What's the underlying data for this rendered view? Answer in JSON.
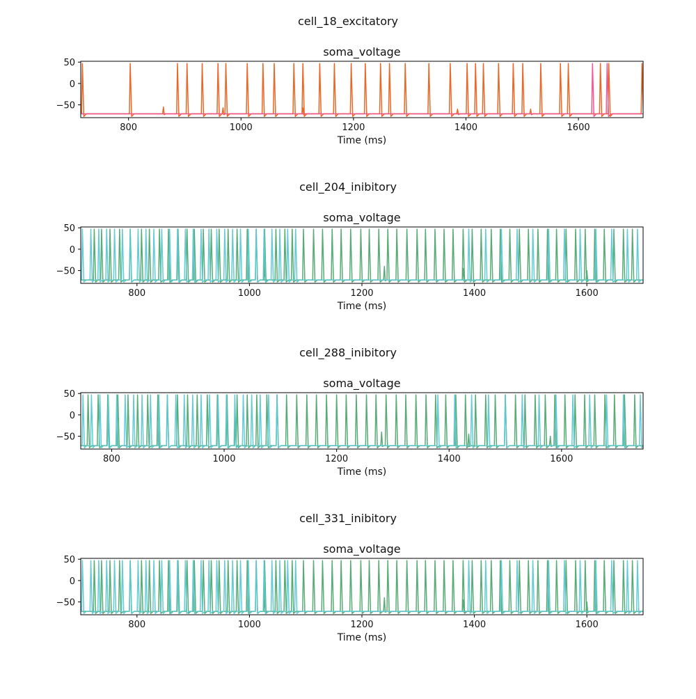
{
  "chart_data": [
    {
      "type": "line",
      "suptitle": "cell_18_excitatory",
      "title": "soma_voltage",
      "xlabel": "Time (ms)",
      "ylabel": "",
      "xlim": [
        715,
        1715
      ],
      "ylim": [
        -80,
        52
      ],
      "xticks": [
        800,
        1000,
        1200,
        1400,
        1600
      ],
      "yticks": [
        50,
        0,
        -50
      ],
      "rest": -71,
      "series": [
        {
          "color": "#e8601c",
          "spikes": [
            718,
            803,
            887,
            904,
            931,
            959,
            973,
            1011,
            1039,
            1059,
            1094,
            1110,
            1140,
            1166,
            1196,
            1221,
            1248,
            1264,
            1292,
            1334,
            1372,
            1402,
            1417,
            1431,
            1458,
            1484,
            1501,
            1533,
            1568,
            1582,
            1639,
            1654,
            1713
          ],
          "small": [
            [
              862,
              -55
            ],
            [
              968,
              -57
            ],
            [
              1110,
              -57
            ],
            [
              1385,
              -60
            ],
            [
              1515,
              -60
            ]
          ]
        },
        {
          "color": "#f0508c",
          "spikes": [
            1625,
            1651
          ],
          "small": []
        }
      ]
    },
    {
      "type": "line",
      "suptitle": "cell_204_inibitory",
      "title": "soma_voltage",
      "xlabel": "Time (ms)",
      "ylabel": "",
      "xlim": [
        700,
        1700
      ],
      "ylim": [
        -80,
        52
      ],
      "xticks": [
        800,
        1000,
        1200,
        1400,
        1600
      ],
      "yticks": [
        50,
        0,
        -50
      ],
      "rest": -72,
      "series": [
        {
          "color": "#4fa66f",
          "spikes": [
            724,
            737,
            752,
            769,
            788,
            808,
            822,
            840,
            856,
            873,
            889,
            902,
            918,
            932,
            946,
            962,
            978,
            996,
            1012,
            1027,
            1047,
            1063,
            1076,
            1096,
            1114,
            1130,
            1147,
            1163,
            1180,
            1198,
            1213,
            1230,
            1246,
            1262,
            1280,
            1298,
            1313,
            1330,
            1346,
            1362,
            1380,
            1396,
            1412,
            1430,
            1446,
            1463,
            1480,
            1496,
            1513,
            1530,
            1546,
            1563,
            1580,
            1597,
            1614,
            1631,
            1648,
            1665,
            1681
          ],
          "small": [
            [
              1027,
              -45
            ],
            [
              1240,
              -40
            ],
            [
              1380,
              -45
            ],
            [
              1600,
              -50
            ]
          ]
        },
        {
          "color": "#5bc8d2",
          "spikes": [
            703,
            718,
            732,
            746,
            760,
            774,
            788,
            802,
            816,
            830,
            844,
            858,
            872,
            886,
            900,
            914,
            928,
            942,
            956,
            970,
            984,
            998,
            1012,
            1026,
            1040,
            1054,
            1068,
            1082,
            1390,
            1420,
            1448,
            1476,
            1504,
            1532,
            1560,
            1588,
            1616,
            1644,
            1672,
            1690
          ],
          "small": []
        }
      ]
    },
    {
      "type": "line",
      "suptitle": "cell_288_inibitory",
      "title": "soma_voltage",
      "xlabel": "Time (ms)",
      "ylabel": "",
      "xlim": [
        745,
        1745
      ],
      "ylim": [
        -80,
        52
      ],
      "xticks": [
        800,
        1000,
        1200,
        1400,
        1600
      ],
      "yticks": [
        50,
        0,
        -50
      ],
      "rest": -72,
      "series": [
        {
          "color": "#4fa66f",
          "spikes": [
            758,
            776,
            793,
            811,
            829,
            846,
            864,
            882,
            899,
            917,
            935,
            952,
            970,
            988,
            1005,
            1023,
            1041,
            1058,
            1076,
            1094,
            1111,
            1129,
            1147,
            1164,
            1182,
            1200,
            1217,
            1235,
            1253,
            1270,
            1288,
            1306,
            1323,
            1341,
            1359,
            1376,
            1394,
            1412,
            1429,
            1447,
            1465,
            1482,
            1500,
            1518,
            1535,
            1553,
            1571,
            1588,
            1606,
            1624,
            1641,
            1659,
            1677,
            1694,
            1712,
            1730
          ],
          "small": [
            [
              1020,
              -5
            ],
            [
              1280,
              -40
            ],
            [
              1435,
              -45
            ],
            [
              1580,
              -50
            ]
          ]
        },
        {
          "color": "#5bc8d2",
          "spikes": [
            749,
            764,
            779,
            794,
            809,
            824,
            839,
            854,
            869,
            884,
            899,
            914,
            929,
            944,
            959,
            974,
            989,
            1004,
            1019,
            1034,
            1049,
            1064,
            1079,
            1094,
            1380,
            1410,
            1440,
            1470,
            1500,
            1530,
            1560,
            1590,
            1620,
            1650,
            1680,
            1710,
            1740
          ],
          "small": []
        }
      ]
    },
    {
      "type": "line",
      "suptitle": "cell_331_inibitory",
      "title": "soma_voltage",
      "xlabel": "Time (ms)",
      "ylabel": "",
      "xlim": [
        700,
        1700
      ],
      "ylim": [
        -80,
        52
      ],
      "xticks": [
        800,
        1000,
        1200,
        1400,
        1600
      ],
      "yticks": [
        50,
        0,
        -50
      ],
      "rest": -72,
      "series": [
        {
          "color": "#4fa66f",
          "spikes": [
            724,
            737,
            752,
            769,
            788,
            808,
            822,
            840,
            856,
            873,
            889,
            902,
            918,
            932,
            946,
            962,
            978,
            996,
            1012,
            1027,
            1047,
            1063,
            1076,
            1096,
            1114,
            1130,
            1147,
            1163,
            1180,
            1198,
            1213,
            1230,
            1246,
            1262,
            1280,
            1298,
            1313,
            1330,
            1346,
            1362,
            1380,
            1396,
            1412,
            1430,
            1446,
            1463,
            1480,
            1496,
            1513,
            1530,
            1546,
            1563,
            1580,
            1597,
            1614,
            1631,
            1648,
            1665,
            1681
          ],
          "small": [
            [
              1027,
              -45
            ],
            [
              1240,
              -40
            ],
            [
              1380,
              -45
            ],
            [
              1600,
              -50
            ]
          ]
        },
        {
          "color": "#5bc8d2",
          "spikes": [
            703,
            718,
            732,
            746,
            760,
            774,
            788,
            802,
            816,
            830,
            844,
            858,
            872,
            886,
            900,
            914,
            928,
            942,
            956,
            970,
            984,
            998,
            1012,
            1026,
            1040,
            1054,
            1068,
            1082,
            1390,
            1420,
            1448,
            1476,
            1504,
            1532,
            1560,
            1588,
            1616,
            1644,
            1672,
            1690
          ],
          "small": []
        }
      ]
    }
  ]
}
